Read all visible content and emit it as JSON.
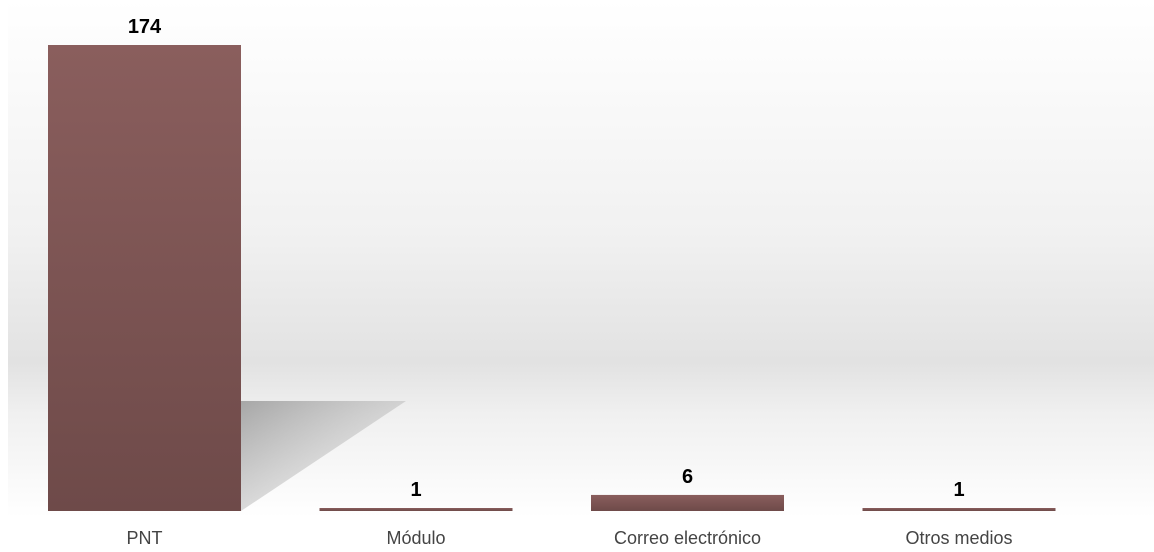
{
  "chart_data": {
    "type": "bar",
    "categories": [
      "PNT",
      "Módulo",
      "Correo electrónico",
      "Otros medios"
    ],
    "values": [
      174,
      1,
      6,
      1
    ],
    "title": "",
    "xlabel": "",
    "ylabel": "",
    "ylim": [
      0,
      174
    ],
    "grid": false,
    "legend": "none",
    "data_labels": true,
    "bar_color": "#7d5554",
    "label_color": "#000000",
    "category_label_color": "#444444"
  }
}
